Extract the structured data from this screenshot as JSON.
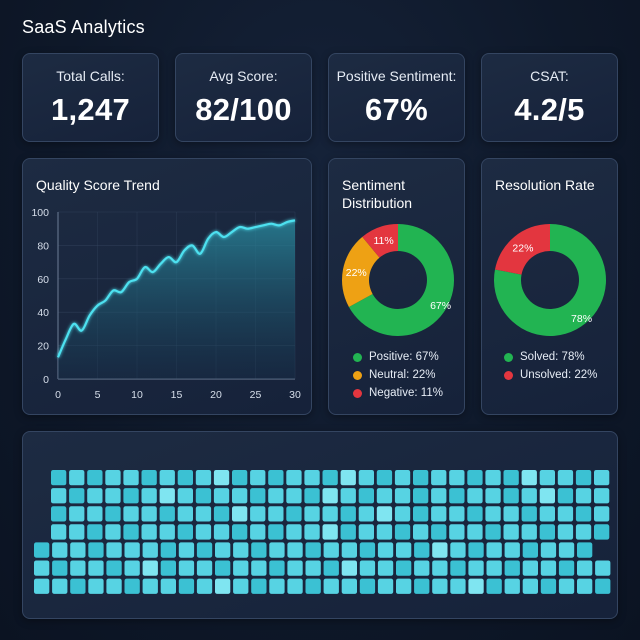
{
  "header": {
    "title": "SaaS Analytics"
  },
  "kpis": [
    {
      "label": "Total Calls:",
      "value": "1,247"
    },
    {
      "label": "Avg Score:",
      "value": "82/100"
    },
    {
      "label": "Positive Sentiment:",
      "value": "67%"
    },
    {
      "label": "CSAT:",
      "value": "4.2/5"
    }
  ],
  "trend": {
    "title": "Quality Score Trend",
    "chart_data": {
      "type": "area",
      "title": "Quality Score Trend",
      "x": [
        0,
        1,
        2,
        3,
        4,
        5,
        6,
        7,
        8,
        9,
        10,
        11,
        12,
        13,
        14,
        15,
        16,
        17,
        18,
        19,
        20,
        21,
        22,
        23,
        24,
        25,
        26,
        27,
        28,
        29,
        30
      ],
      "y": [
        13,
        24,
        33,
        29,
        38,
        44,
        47,
        53,
        52,
        58,
        60,
        67,
        64,
        69,
        73,
        70,
        77,
        80,
        75,
        84,
        88,
        85,
        88,
        91,
        90,
        91,
        92,
        93,
        92,
        94,
        95
      ],
      "xticks": [
        "0",
        "5",
        "10",
        "15",
        "20",
        "25",
        "30"
      ],
      "yticks": [
        "0",
        "20",
        "40",
        "60",
        "80",
        "100"
      ],
      "xlim": [
        0,
        30
      ],
      "ylim": [
        0,
        100
      ],
      "line_color": "#4ee1f0"
    }
  },
  "sentiment": {
    "title_line1": "Sentiment",
    "title_line2": "Distribution",
    "chart_data": {
      "type": "pie",
      "slices": [
        {
          "name": "Positive",
          "value": 67,
          "label": "67%",
          "color": "#22b452"
        },
        {
          "name": "Neutral",
          "value": 22,
          "label": "22%",
          "color": "#eea114"
        },
        {
          "name": "Negative",
          "value": 11,
          "label": "11%",
          "color": "#e3363f"
        }
      ]
    },
    "legend": [
      "Positive: 67%",
      "Neutral: 22%",
      "Negative: 11%"
    ]
  },
  "resolution": {
    "title": "Resolution Rate",
    "chart_data": {
      "type": "pie",
      "slices": [
        {
          "name": "Solved",
          "value": 78,
          "label": "78%",
          "color": "#22b452"
        },
        {
          "name": "Unsolved",
          "value": 22,
          "label": "22%",
          "color": "#e3363f"
        }
      ]
    },
    "legend": [
      "Solved: 78%",
      "Unsolved: 22%"
    ]
  },
  "heatmap": {
    "colors": [
      "#27a7b9",
      "#3bc1d3",
      "#57d3e3",
      "#7fe5f1"
    ],
    "rows": [
      {
        "cells": [
          1,
          2,
          1,
          2,
          2,
          1,
          2,
          1,
          2,
          3,
          1,
          2,
          1,
          2,
          2,
          1,
          3,
          2,
          1,
          2,
          1,
          2,
          2,
          1,
          2,
          1,
          3,
          2,
          2,
          1,
          2,
          2,
          1
        ]
      },
      {
        "cells": [
          2,
          1,
          2,
          2,
          1,
          2,
          3,
          2,
          1,
          2,
          2,
          1,
          2,
          2,
          1,
          3,
          2,
          1,
          2,
          2,
          1,
          2,
          1,
          2,
          2,
          1,
          2,
          3,
          1,
          2,
          2,
          1
        ]
      },
      {
        "cells": [
          1,
          2,
          2,
          1,
          2,
          2,
          1,
          2,
          2,
          1,
          3,
          2,
          2,
          1,
          2,
          2,
          1,
          2,
          3,
          2,
          1,
          2,
          2,
          1,
          2,
          2,
          1,
          2,
          2,
          1,
          2,
          2
        ]
      },
      {
        "cells": [
          2,
          2,
          1,
          2,
          1,
          2,
          2,
          1,
          2,
          2,
          1,
          2,
          1,
          2,
          2,
          3,
          1,
          2,
          2,
          1,
          2,
          1,
          2,
          2,
          1,
          2,
          2,
          1,
          2,
          2,
          1,
          2
        ]
      },
      {
        "cells": [
          1,
          2,
          2,
          1,
          2,
          2,
          2,
          1,
          2,
          1,
          2,
          2,
          1,
          2,
          2,
          1,
          2,
          2,
          1,
          2,
          2,
          1,
          3,
          2,
          1,
          2,
          2,
          1,
          2,
          2,
          1
        ]
      },
      {
        "cells": [
          2,
          1,
          2,
          2,
          1,
          2,
          3,
          1,
          2,
          2,
          1,
          2,
          2,
          1,
          2,
          2,
          1,
          3,
          2,
          2,
          1,
          2,
          2,
          1,
          2,
          2,
          1,
          2,
          2,
          1,
          2,
          2,
          1
        ]
      },
      {
        "cells": [
          2,
          2,
          1,
          2,
          2,
          1,
          2,
          2,
          1,
          2,
          3,
          2,
          1,
          2,
          2,
          1,
          2,
          2,
          1,
          2,
          2,
          1,
          2,
          2,
          3,
          1,
          2,
          2,
          1,
          2,
          2,
          1
        ]
      }
    ]
  }
}
